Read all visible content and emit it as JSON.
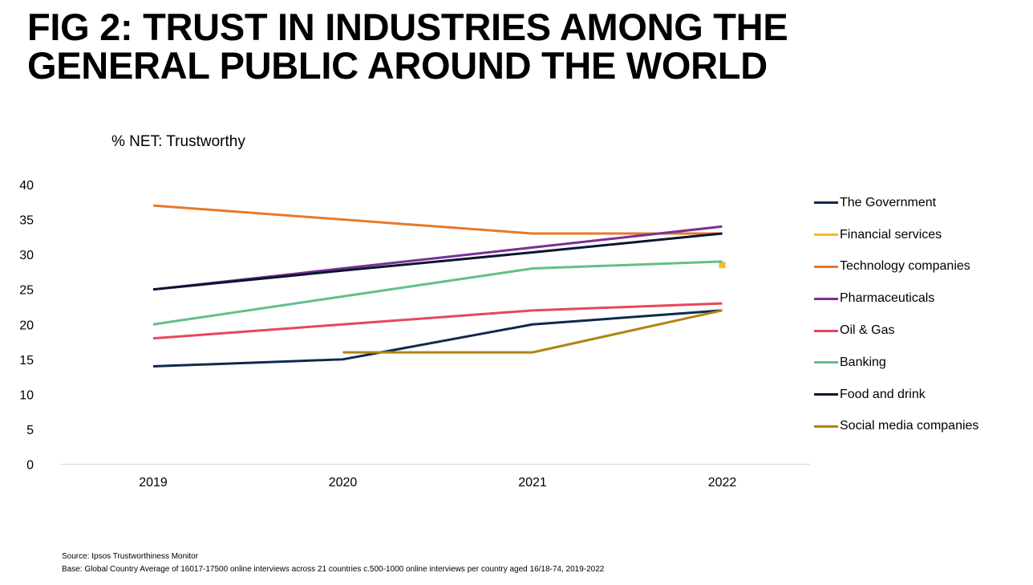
{
  "title": {
    "line1": "FIG 2: TRUST IN INDUSTRIES AMONG THE",
    "line2": "GENERAL PUBLIC AROUND THE WORLD"
  },
  "chart_data": {
    "type": "line",
    "title": "FIG 2: TRUST IN INDUSTRIES AMONG THE GENERAL PUBLIC AROUND THE WORLD",
    "subtitle": "% NET: Trustworthy",
    "xlabel": "",
    "ylabel": "% NET: Trustworthy",
    "categories": [
      "2019",
      "2020",
      "2021",
      "2022"
    ],
    "ylim": [
      0,
      40
    ],
    "yticks": [
      0,
      5,
      10,
      15,
      20,
      25,
      30,
      35,
      40
    ],
    "grid": false,
    "legend_position": "right",
    "series": [
      {
        "name": "The Government",
        "color": "#0d2a4e",
        "values": [
          14,
          15,
          20,
          22
        ]
      },
      {
        "name": "Financial services",
        "color": "#f5bd1f",
        "values": [
          null,
          null,
          null,
          28.5
        ]
      },
      {
        "name": "Technology companies",
        "color": "#e8782a",
        "values": [
          37,
          35,
          33,
          33
        ]
      },
      {
        "name": "Pharmaceuticals",
        "color": "#7b2f95",
        "values": [
          25,
          28,
          31,
          34
        ]
      },
      {
        "name": "Oil & Gas",
        "color": "#e8475a",
        "values": [
          18,
          20,
          22,
          23
        ]
      },
      {
        "name": "Banking",
        "color": "#63bf8a",
        "values": [
          20,
          24,
          28,
          29
        ]
      },
      {
        "name": "Food and drink",
        "color": "#0a1530",
        "values": [
          25,
          27.7,
          30.3,
          33
        ]
      },
      {
        "name": "Social media companies",
        "color": "#b08412",
        "values": [
          null,
          16,
          16,
          22
        ]
      }
    ]
  },
  "footnotes": {
    "source": "Source: Ipsos Trustworthiness Monitor",
    "base": "Base: Global Country Average of 16017-17500 online interviews across 21 countries c.500-1000 online interviews per country aged 16/18-74, 2019-2022"
  }
}
